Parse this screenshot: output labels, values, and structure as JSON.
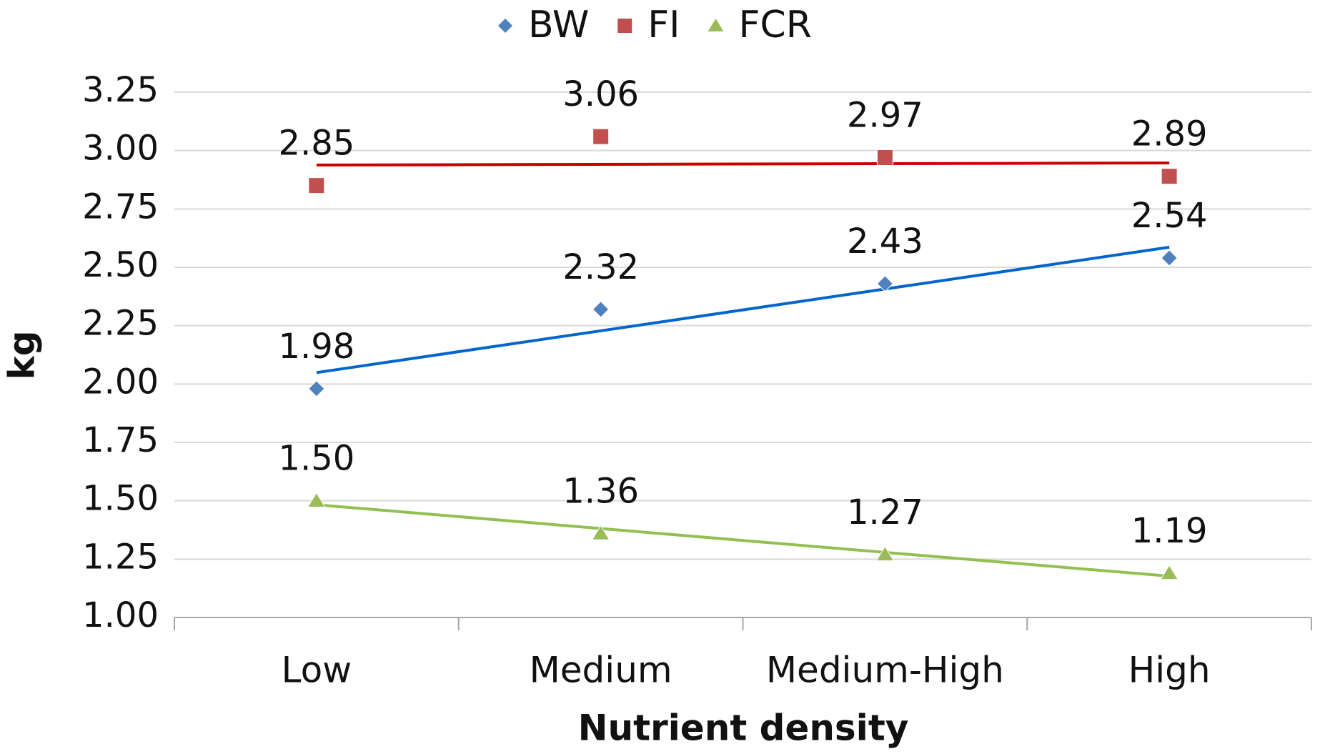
{
  "chart_data": {
    "type": "scatter",
    "trendline": true,
    "grid": true,
    "legend": "top",
    "x_label": "Nutrient density",
    "y_label": "kg",
    "categories": [
      "Low",
      "Medium",
      "Medium-High",
      "High"
    ],
    "ylim": [
      1.0,
      3.25
    ],
    "yticks": [
      {
        "value": 1.0,
        "label": "1.00"
      },
      1.25,
      {
        "value": 1.5,
        "label": "1.50"
      },
      1.75,
      {
        "value": 2.0,
        "label": "2.00"
      },
      2.25,
      {
        "value": 2.5,
        "label": "2.50"
      },
      2.75,
      {
        "value": 3.0,
        "label": "3.00"
      },
      3.25
    ],
    "series": [
      {
        "name": "BW",
        "marker": "diamond",
        "color": "#4f81bd",
        "trend_color": "#0066cc",
        "values": [
          1.98,
          2.32,
          2.43,
          2.54
        ]
      },
      {
        "name": "FI",
        "marker": "square",
        "color": "#c0504d",
        "trend_color": "#cc0000",
        "values": [
          2.85,
          3.06,
          2.97,
          2.89
        ]
      },
      {
        "name": "FCR",
        "marker": "triangle",
        "color": "#9bbb59",
        "trend_color": "#92c050",
        "values": [
          1.5,
          1.36,
          1.27,
          1.19
        ],
        "value_labels": [
          "1.50",
          "1.36",
          "1.27",
          "1.19"
        ]
      }
    ]
  }
}
